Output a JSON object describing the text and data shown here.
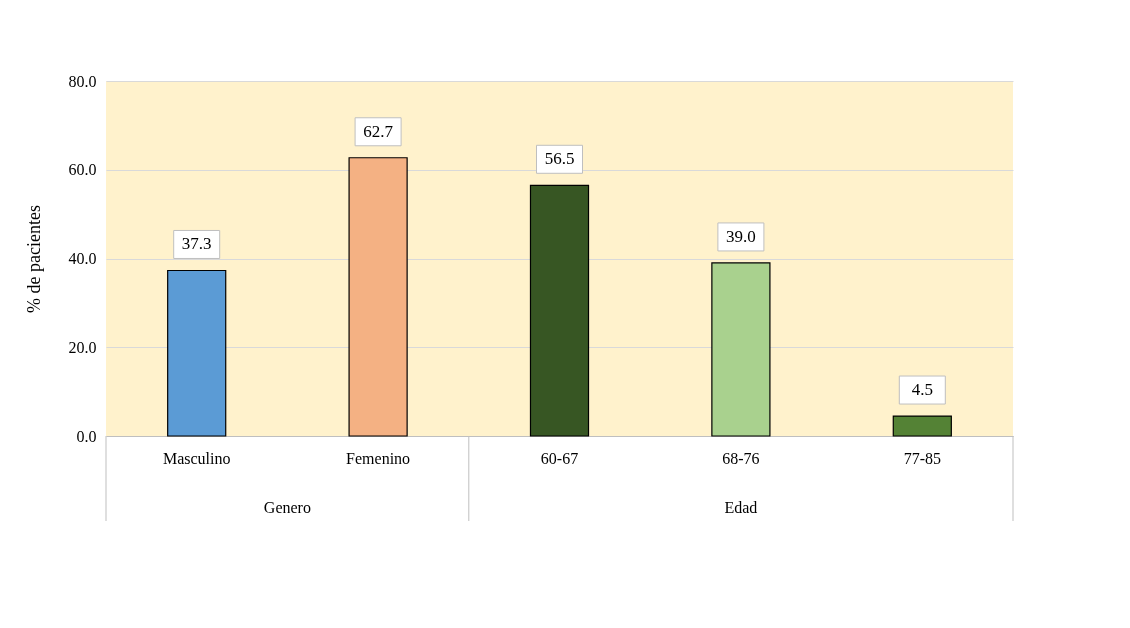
{
  "chart_data": {
    "type": "bar",
    "ylabel": "% de pacientes",
    "categories": [
      "Masculino",
      "Femenino",
      "60-67",
      "68-76",
      "77-85"
    ],
    "values": [
      37.3,
      62.7,
      56.5,
      39.0,
      4.5
    ],
    "colors": [
      "#5b9bd5",
      "#f4b183",
      "#375623",
      "#a9d18e",
      "#548235"
    ],
    "ylim": [
      0,
      80
    ],
    "yticks": [
      {
        "value": 0,
        "label": "0.0"
      },
      {
        "value": 20,
        "label": "20.0"
      },
      {
        "value": 40,
        "label": "40.0"
      },
      {
        "value": 60,
        "label": "60.0"
      },
      {
        "value": 80,
        "label": "80.0"
      }
    ],
    "grid": "y",
    "value_labels": [
      "37.3",
      "62.7",
      "56.5",
      "39.0",
      "4.5"
    ],
    "annotations": [
      "Genero",
      "Edad"
    ]
  }
}
